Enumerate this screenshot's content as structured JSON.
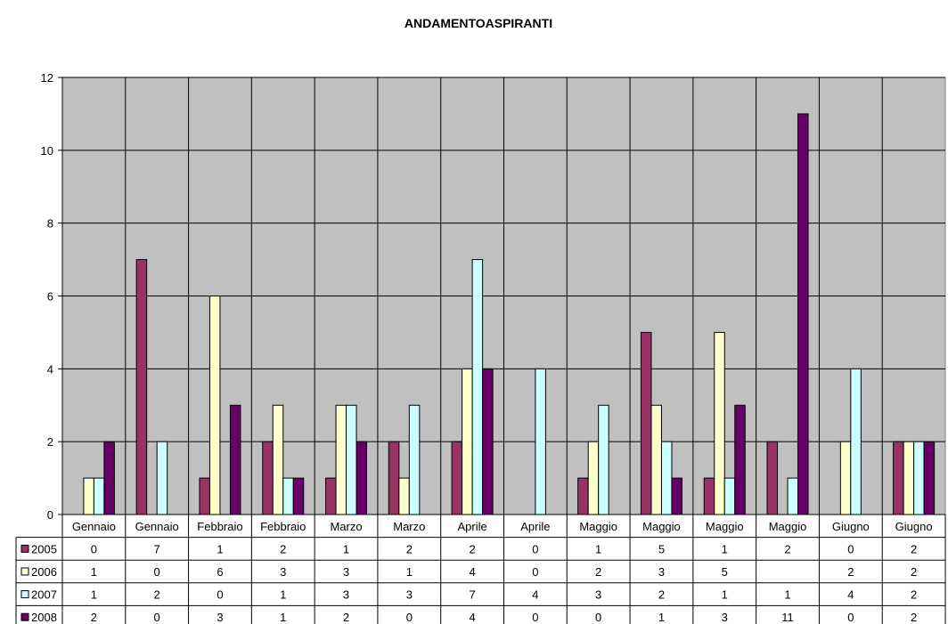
{
  "chart_data": {
    "type": "bar",
    "title": "ANDAMENTOASPIRANTI",
    "categories": [
      "Gennaio",
      "Gennaio",
      "Febbraio",
      "Febbraio",
      "Marzo",
      "Marzo",
      "Aprile",
      "Aprile",
      "Maggio",
      "Maggio",
      "Maggio",
      "Maggio",
      "Giugno",
      "Giugno"
    ],
    "series": [
      {
        "name": "2005",
        "color": "#993366",
        "values": [
          0,
          7,
          1,
          2,
          1,
          2,
          2,
          0,
          1,
          5,
          1,
          2,
          0,
          2
        ]
      },
      {
        "name": "2006",
        "color": "#ffffcc",
        "values": [
          1,
          0,
          6,
          3,
          3,
          1,
          4,
          0,
          2,
          3,
          5,
          null,
          2,
          2
        ]
      },
      {
        "name": "2007",
        "color": "#ccffff",
        "values": [
          1,
          2,
          0,
          1,
          3,
          3,
          7,
          4,
          3,
          2,
          1,
          1,
          4,
          2
        ]
      },
      {
        "name": "2008",
        "color": "#660066",
        "values": [
          2,
          0,
          3,
          1,
          2,
          0,
          4,
          0,
          0,
          1,
          3,
          11,
          0,
          2
        ]
      }
    ],
    "yticks": [
      0,
      2,
      4,
      6,
      8,
      10,
      12
    ],
    "ylim": [
      0,
      12
    ],
    "plot_background": "#c0c0c0",
    "legend": "data-table-below",
    "grid": true
  }
}
